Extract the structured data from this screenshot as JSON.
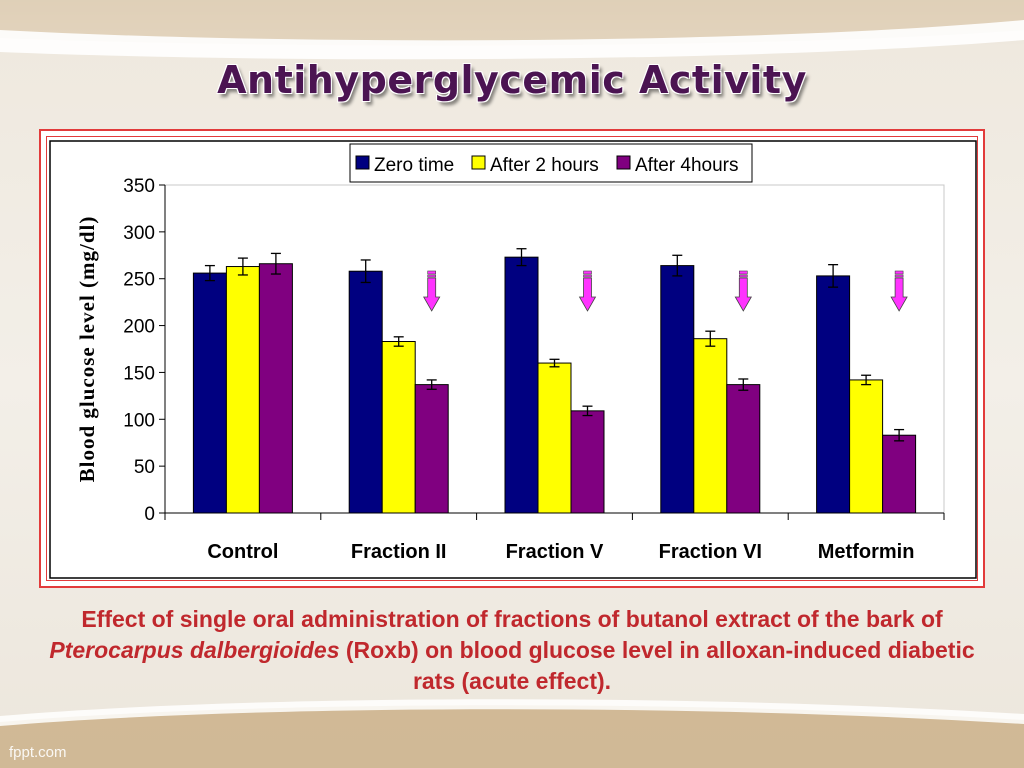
{
  "slide": {
    "title": "Antihyperglycemic Activity",
    "caption": {
      "part1": "Effect of single oral administration of fractions of butanol extract of the bark of ",
      "species": "Pterocarpus dalbergioides",
      "part2": " (Roxb) on blood glucose level in alloxan-induced diabetic rats (acute effect)."
    },
    "watermark": "fppt.com"
  },
  "colors": {
    "title": "#4b1452",
    "caption": "#c0282d",
    "frame_border": "#e23b3b",
    "arrow": "#ff33ff"
  },
  "chart_data": {
    "type": "bar",
    "categories": [
      "Control",
      "Fraction II",
      "Fraction V",
      "Fraction VI",
      "Metformin"
    ],
    "series": [
      {
        "name": "Zero time",
        "color": "#000080",
        "values": [
          256,
          258,
          273,
          264,
          253
        ],
        "errors": [
          8,
          12,
          9,
          11,
          12
        ]
      },
      {
        "name": "After 2 hours",
        "color": "#ffff00",
        "values": [
          263,
          183,
          160,
          186,
          142
        ],
        "errors": [
          9,
          5,
          4,
          8,
          5
        ]
      },
      {
        "name": "After 4hours",
        "color": "#800080",
        "values": [
          266,
          137,
          109,
          137,
          83
        ],
        "errors": [
          11,
          5,
          5,
          6,
          6
        ]
      }
    ],
    "ylabel": "Blood glucose level (mg/dl)",
    "ylim": [
      0,
      350
    ],
    "yticks": [
      0,
      50,
      100,
      150,
      200,
      250,
      300,
      350
    ],
    "legend_position": "top-center",
    "grid": false,
    "annotations": [
      {
        "type": "down-arrow",
        "category": "Fraction II"
      },
      {
        "type": "down-arrow",
        "category": "Fraction V"
      },
      {
        "type": "down-arrow",
        "category": "Fraction VI"
      },
      {
        "type": "down-arrow",
        "category": "Metformin"
      }
    ]
  }
}
